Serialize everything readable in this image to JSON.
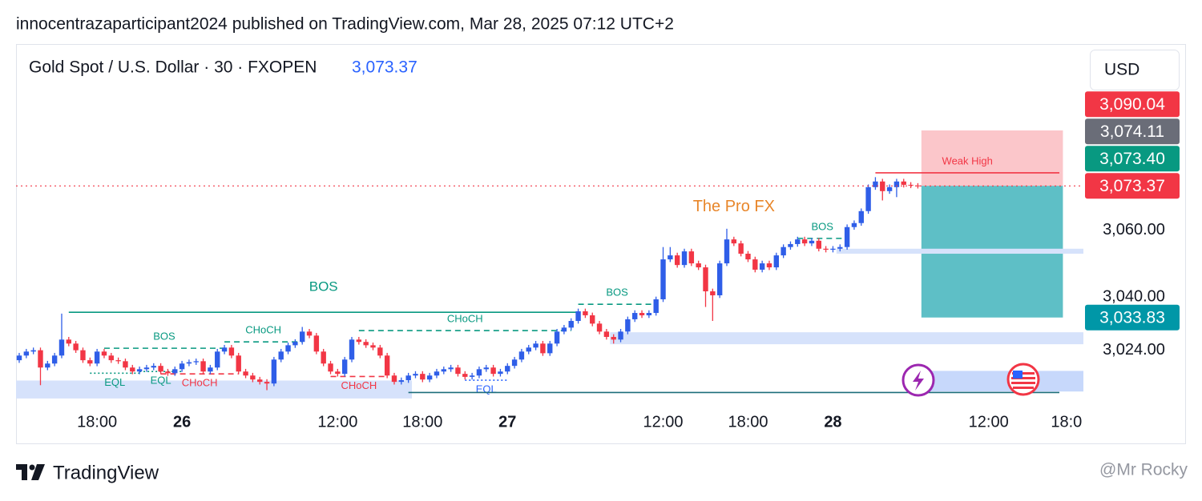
{
  "header": {
    "byline": "innocentrazaparticipant2024 published on TradingView.com, Mar 28, 2025 07:12 UTC+2"
  },
  "footer": {
    "brand": "TradingView",
    "watermark": "@Mr Rocky"
  },
  "chart_data": {
    "type": "candlestick",
    "title": "Gold Spot / U.S. Dollar · 30 · FXOPEN",
    "price_label": "3,073.37",
    "currency": "USD",
    "up_color": "#2f5ee8",
    "down_color": "#f23645",
    "grid": false,
    "ylim": [
      3009,
      3116
    ],
    "yticks": [
      {
        "value": 3060,
        "label": "3,060.00"
      },
      {
        "value": 3040,
        "label": "3,040.00"
      },
      {
        "value": 3024,
        "label": "3,024.00"
      }
    ],
    "xticks": [
      {
        "value": 11,
        "label": "18:00"
      },
      {
        "value": 23,
        "label": "26"
      },
      {
        "value": 45,
        "label": "12:00"
      },
      {
        "value": 57,
        "label": "18:00"
      },
      {
        "value": 69,
        "label": "27"
      },
      {
        "value": 91,
        "label": "12:00"
      },
      {
        "value": 103,
        "label": "18:00"
      },
      {
        "value": 115,
        "label": "28"
      },
      {
        "value": 137,
        "label": "12:00"
      },
      {
        "value": 148,
        "label": "18:0"
      }
    ],
    "candles": [
      [
        3021.0,
        3023.2,
        3020.2,
        3022.4
      ],
      [
        3022.4,
        3024.4,
        3021.6,
        3023.6
      ],
      [
        3023.6,
        3024.8,
        3022.8,
        3024.0
      ],
      [
        3024.0,
        3024.8,
        3013.5,
        3018.8
      ],
      [
        3018.8,
        3020.8,
        3018.0,
        3020.0
      ],
      [
        3020.0,
        3023.2,
        3019.2,
        3022.4
      ],
      [
        3022.4,
        3035.0,
        3021.6,
        3027.2
      ],
      [
        3027.2,
        3028.0,
        3025.2,
        3026.0
      ],
      [
        3026.0,
        3026.8,
        3023.2,
        3024.0
      ],
      [
        3024.0,
        3024.8,
        3020.2,
        3021.0
      ],
      [
        3021.0,
        3021.8,
        3019.2,
        3020.0
      ],
      [
        3020.0,
        3024.4,
        3019.2,
        3023.6
      ],
      [
        3023.6,
        3024.4,
        3021.6,
        3022.4
      ],
      [
        3022.4,
        3023.2,
        3020.2,
        3021.0
      ],
      [
        3021.0,
        3021.8,
        3019.9,
        3020.7
      ],
      [
        3020.7,
        3021.5,
        3018.0,
        3018.8
      ],
      [
        3018.8,
        3019.6,
        3016.8,
        3017.6
      ],
      [
        3017.6,
        3019.1,
        3016.8,
        3018.3
      ],
      [
        3018.3,
        3019.6,
        3017.5,
        3018.8
      ],
      [
        3018.8,
        3020.1,
        3018.0,
        3019.3
      ],
      [
        3019.3,
        3020.1,
        3016.8,
        3017.6
      ],
      [
        3017.6,
        3018.4,
        3016.3,
        3017.1
      ],
      [
        3017.1,
        3019.1,
        3016.3,
        3018.3
      ],
      [
        3018.3,
        3020.8,
        3017.5,
        3020.0
      ],
      [
        3020.0,
        3021.2,
        3019.2,
        3020.4
      ],
      [
        3020.4,
        3021.5,
        3019.6,
        3020.7
      ],
      [
        3020.7,
        3021.5,
        3016.8,
        3017.6
      ],
      [
        3017.6,
        3019.6,
        3016.8,
        3018.8
      ],
      [
        3018.8,
        3024.4,
        3018.0,
        3023.6
      ],
      [
        3023.6,
        3025.6,
        3022.8,
        3024.8
      ],
      [
        3024.8,
        3025.6,
        3021.6,
        3022.4
      ],
      [
        3022.4,
        3023.2,
        3016.8,
        3017.6
      ],
      [
        3017.6,
        3018.4,
        3015.6,
        3016.4
      ],
      [
        3016.4,
        3017.2,
        3014.4,
        3015.2
      ],
      [
        3015.2,
        3016.0,
        3013.7,
        3014.5
      ],
      [
        3014.5,
        3015.3,
        3012.0,
        3014.0
      ],
      [
        3014.0,
        3022.0,
        3013.2,
        3021.2
      ],
      [
        3021.2,
        3024.4,
        3020.4,
        3023.6
      ],
      [
        3023.6,
        3026.3,
        3022.8,
        3025.5
      ],
      [
        3025.5,
        3027.3,
        3024.7,
        3026.5
      ],
      [
        3026.5,
        3031.0,
        3025.7,
        3029.6
      ],
      [
        3029.6,
        3030.4,
        3027.6,
        3028.4
      ],
      [
        3028.4,
        3029.2,
        3022.8,
        3023.6
      ],
      [
        3023.6,
        3024.4,
        3019.2,
        3020.0
      ],
      [
        3020.0,
        3020.8,
        3016.8,
        3017.6
      ],
      [
        3017.6,
        3018.4,
        3016.1,
        3016.9
      ],
      [
        3016.9,
        3022.0,
        3016.1,
        3021.2
      ],
      [
        3021.2,
        3028.0,
        3020.4,
        3027.2
      ],
      [
        3027.2,
        3028.0,
        3025.7,
        3026.5
      ],
      [
        3026.5,
        3027.3,
        3024.7,
        3025.5
      ],
      [
        3025.5,
        3026.3,
        3024.0,
        3024.8
      ],
      [
        3024.8,
        3025.6,
        3021.6,
        3022.4
      ],
      [
        3022.4,
        3023.2,
        3015.6,
        3016.4
      ],
      [
        3016.4,
        3017.2,
        3013.7,
        3014.5
      ],
      [
        3014.5,
        3015.8,
        3013.7,
        3015.0
      ],
      [
        3015.0,
        3017.2,
        3014.2,
        3016.4
      ],
      [
        3016.4,
        3017.7,
        3015.6,
        3016.9
      ],
      [
        3016.9,
        3017.7,
        3014.4,
        3015.2
      ],
      [
        3015.2,
        3017.2,
        3014.4,
        3016.4
      ],
      [
        3016.4,
        3018.4,
        3015.6,
        3017.6
      ],
      [
        3017.6,
        3019.1,
        3016.8,
        3018.3
      ],
      [
        3018.3,
        3019.6,
        3017.5,
        3018.8
      ],
      [
        3018.8,
        3019.6,
        3016.1,
        3016.9
      ],
      [
        3016.9,
        3017.7,
        3015.2,
        3016.0
      ],
      [
        3016.0,
        3017.2,
        3015.2,
        3016.4
      ],
      [
        3016.4,
        3019.1,
        3015.6,
        3018.3
      ],
      [
        3018.3,
        3019.6,
        3017.5,
        3018.8
      ],
      [
        3018.8,
        3019.6,
        3016.1,
        3016.9
      ],
      [
        3016.9,
        3018.4,
        3016.1,
        3017.6
      ],
      [
        3017.6,
        3020.1,
        3016.8,
        3019.3
      ],
      [
        3019.3,
        3022.0,
        3018.5,
        3021.2
      ],
      [
        3021.2,
        3024.4,
        3020.4,
        3023.6
      ],
      [
        3023.6,
        3025.6,
        3022.8,
        3024.8
      ],
      [
        3024.8,
        3026.8,
        3024.0,
        3026.0
      ],
      [
        3026.0,
        3026.8,
        3022.3,
        3023.1
      ],
      [
        3023.1,
        3026.8,
        3022.3,
        3026.0
      ],
      [
        3026.0,
        3030.4,
        3025.2,
        3029.6
      ],
      [
        3029.6,
        3031.6,
        3028.8,
        3030.8
      ],
      [
        3030.8,
        3033.6,
        3030.0,
        3032.8
      ],
      [
        3032.8,
        3036.5,
        3032.0,
        3035.7
      ],
      [
        3035.7,
        3036.5,
        3033.7,
        3034.5
      ],
      [
        3034.5,
        3035.3,
        3031.2,
        3032.0
      ],
      [
        3032.0,
        3032.8,
        3028.8,
        3029.6
      ],
      [
        3029.6,
        3030.4,
        3027.2,
        3028.0
      ],
      [
        3028.0,
        3028.8,
        3026.0,
        3027.2
      ],
      [
        3027.2,
        3030.4,
        3026.4,
        3029.6
      ],
      [
        3029.6,
        3034.1,
        3028.8,
        3033.3
      ],
      [
        3033.3,
        3036.0,
        3032.5,
        3035.2
      ],
      [
        3035.2,
        3036.0,
        3033.7,
        3034.5
      ],
      [
        3034.5,
        3036.0,
        3033.7,
        3035.2
      ],
      [
        3035.2,
        3040.1,
        3034.4,
        3039.3
      ],
      [
        3039.3,
        3055.0,
        3038.5,
        3051.3
      ],
      [
        3051.3,
        3055.0,
        3050.5,
        3052.5
      ],
      [
        3052.5,
        3053.3,
        3048.8,
        3049.6
      ],
      [
        3049.6,
        3054.5,
        3048.8,
        3053.7
      ],
      [
        3053.7,
        3054.5,
        3049.3,
        3050.1
      ],
      [
        3050.1,
        3050.9,
        3048.1,
        3048.9
      ],
      [
        3048.9,
        3049.7,
        3037.0,
        3041.7
      ],
      [
        3041.7,
        3042.5,
        3032.8,
        3040.5
      ],
      [
        3040.5,
        3050.9,
        3039.7,
        3050.1
      ],
      [
        3050.1,
        3060.5,
        3049.3,
        3057.3
      ],
      [
        3057.3,
        3058.1,
        3055.3,
        3056.1
      ],
      [
        3056.1,
        3056.9,
        3052.2,
        3053.0
      ],
      [
        3053.0,
        3053.8,
        3050.5,
        3051.3
      ],
      [
        3051.3,
        3052.1,
        3047.4,
        3048.2
      ],
      [
        3048.2,
        3050.9,
        3047.4,
        3050.1
      ],
      [
        3050.1,
        3050.9,
        3048.1,
        3048.9
      ],
      [
        3048.9,
        3053.3,
        3048.1,
        3052.5
      ],
      [
        3052.5,
        3055.8,
        3051.7,
        3055.0
      ],
      [
        3055.0,
        3056.7,
        3054.2,
        3055.9
      ],
      [
        3055.9,
        3058.1,
        3055.1,
        3057.3
      ],
      [
        3057.3,
        3058.1,
        3055.3,
        3056.1
      ],
      [
        3056.1,
        3057.7,
        3055.3,
        3056.9
      ],
      [
        3056.9,
        3057.7,
        3053.7,
        3054.5
      ],
      [
        3054.5,
        3055.3,
        3053.4,
        3054.2
      ],
      [
        3054.2,
        3055.3,
        3053.4,
        3054.5
      ],
      [
        3054.5,
        3055.8,
        3053.7,
        3055.0
      ],
      [
        3055.0,
        3061.8,
        3054.2,
        3061.0
      ],
      [
        3061.0,
        3063.0,
        3060.2,
        3062.2
      ],
      [
        3062.2,
        3066.6,
        3061.4,
        3065.8
      ],
      [
        3065.8,
        3073.8,
        3065.0,
        3073.0
      ],
      [
        3073.0,
        3076.0,
        3072.2,
        3074.7
      ],
      [
        3074.7,
        3075.5,
        3069.0,
        3071.8
      ],
      [
        3071.8,
        3073.8,
        3071.0,
        3073.0
      ],
      [
        3073.0,
        3075.5,
        3070.0,
        3074.7
      ],
      [
        3074.7,
        3075.5,
        3072.9,
        3073.7
      ],
      [
        3073.7,
        3074.5,
        3072.7,
        3073.5
      ],
      [
        3073.5,
        3074.2,
        3072.6,
        3073.37
      ]
    ],
    "zones": [
      {
        "top": 3090.04,
        "bottom": 3073.4,
        "from": 128,
        "to": 147,
        "color": "#fbc6ca"
      },
      {
        "top": 3073.4,
        "bottom": 3033.83,
        "from": 128,
        "to": 147,
        "color": "#5ebfc6"
      },
      {
        "top": 3054.5,
        "bottom": 3053.0,
        "from": 116,
        "to": 150,
        "color": "#d6e2fb"
      },
      {
        "top": 3029.4,
        "bottom": 3025.8,
        "from": 84,
        "to": 150,
        "color": "#d6e2fb"
      },
      {
        "top": 3014.9,
        "bottom": 3009.5,
        "from": 0,
        "to": 55,
        "color": "#d6e2fb"
      },
      {
        "top": 3017.8,
        "bottom": 3011.6,
        "from": 128,
        "to": 150,
        "color": "#c7d8fb"
      }
    ],
    "levels": [
      {
        "label": "BOS",
        "price": 3035.4,
        "from": 7,
        "to": 79,
        "color": "#089981",
        "style": "solid",
        "label_side": "above"
      },
      {
        "label": "BOS",
        "price": 3024.6,
        "from": 12,
        "to": 29,
        "color": "#089981",
        "style": "dashed",
        "label_side": "above"
      },
      {
        "label": "CHoCH",
        "price": 3026.5,
        "from": 29,
        "to": 40,
        "color": "#089981",
        "style": "dashed",
        "label_side": "above"
      },
      {
        "label": "CHoCH",
        "price": 3029.9,
        "from": 48,
        "to": 78,
        "color": "#089981",
        "style": "dashed",
        "label_side": "above"
      },
      {
        "label": "BOS",
        "price": 3037.8,
        "from": 79,
        "to": 90,
        "color": "#089981",
        "style": "dashed",
        "label_side": "above"
      },
      {
        "label": "BOS",
        "price": 3057.6,
        "from": 110,
        "to": 117,
        "color": "#089981",
        "style": "dashed",
        "label_side": "above"
      },
      {
        "label": "EQL",
        "price": 3017.1,
        "from": 10,
        "to": 17,
        "color": "#089981",
        "style": "dotted",
        "label_side": "below"
      },
      {
        "label": "EQL",
        "price": 3017.6,
        "from": 17,
        "to": 23,
        "color": "#089981",
        "style": "dotted",
        "label_side": "below"
      },
      {
        "label": "CHoCH",
        "price": 3016.9,
        "from": 20,
        "to": 31,
        "color": "#f23645",
        "style": "dashed",
        "label_side": "below"
      },
      {
        "label": "CHoCH",
        "price": 3016.1,
        "from": 44,
        "to": 52,
        "color": "#f23645",
        "style": "dashed",
        "label_side": "below"
      },
      {
        "label": "EQL",
        "price": 3015.0,
        "from": 63,
        "to": 69,
        "color": "#2962ff",
        "style": "dotted",
        "label_side": "below"
      },
      {
        "price": 3011.3,
        "from": 55,
        "to": 147,
        "color": "#1c6e7a",
        "style": "solid"
      },
      {
        "label": "Weak High",
        "price": 3077.3,
        "from": 121,
        "to": 147,
        "color": "#f23645",
        "style": "solid",
        "label_side": "above"
      }
    ],
    "annotations": [
      {
        "text": "The Pro FX",
        "x": 101,
        "y": 3067,
        "color": "#e8862a"
      }
    ],
    "price_tags": [
      {
        "value": 3090.04,
        "label": "3,090.04",
        "color": "#f23645"
      },
      {
        "value": 3074.11,
        "label": "3,074.11",
        "color": "#6a6d78"
      },
      {
        "value": 3073.4,
        "label": "3,073.40",
        "color": "#089981"
      },
      {
        "value": 3073.37,
        "label": "3,073.37",
        "color": "#f23645"
      },
      {
        "value": 3033.83,
        "label": "3,033.83",
        "color": "#0097a7"
      }
    ]
  }
}
